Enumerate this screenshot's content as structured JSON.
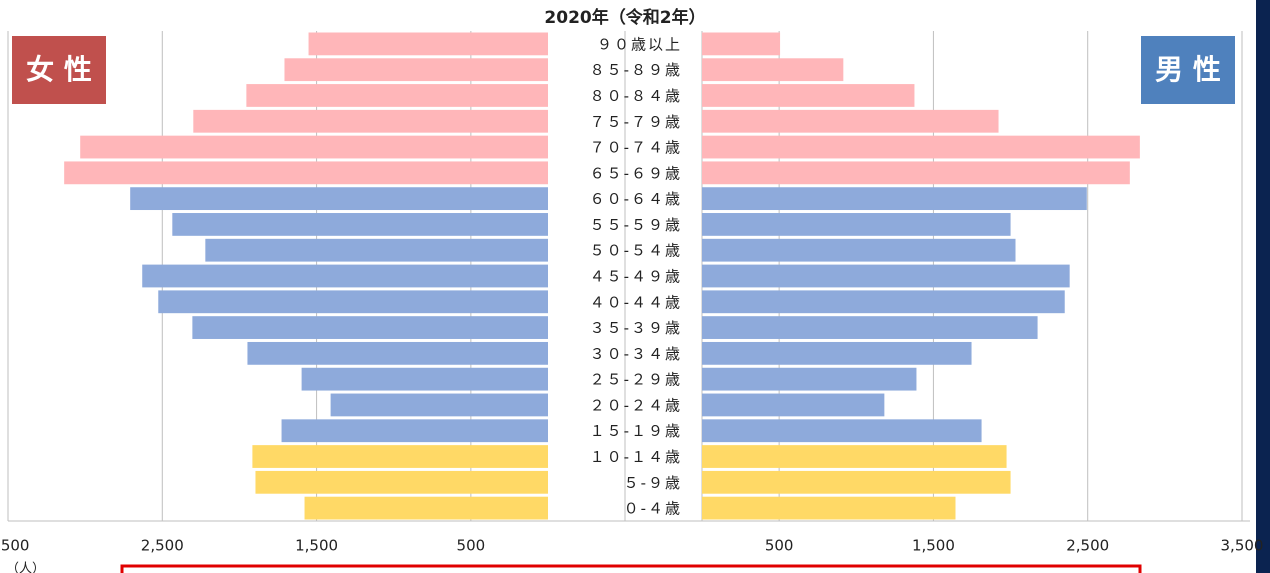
{
  "chart_data": {
    "type": "pyramid",
    "title": "2020年（令和2年）",
    "x_label": "（人）",
    "categories": [
      "９０歳以上",
      "８５-８９歳",
      "８０-８４歳",
      "７５-７９歳",
      "７０-７４歳",
      "６５-６９歳",
      "６０-６４歳",
      "５５-５９歳",
      "５０-５４歳",
      "４５-４９歳",
      "４０-４４歳",
      "３５-３９歳",
      "３０-３４歳",
      "２５-２９歳",
      "２０-２４歳",
      "１５-１９歳",
      "１０-１４歳",
      "５-９歳",
      "０-４歳"
    ],
    "category_colors": [
      "#ffb6b9",
      "#ffb6b9",
      "#ffb6b9",
      "#ffb6b9",
      "#ffb6b9",
      "#ffb6b9",
      "#8eaadb",
      "#8eaadb",
      "#8eaadb",
      "#8eaadb",
      "#8eaadb",
      "#8eaadb",
      "#8eaadb",
      "#8eaadb",
      "#8eaadb",
      "#8eaadb",
      "#ffd966",
      "#ffd966",
      "#ffd966"
    ],
    "series": [
      {
        "name": "女 性",
        "color": "#c0504d",
        "side": "left",
        "values": [
          1552,
          1708,
          1955,
          2299,
          3032,
          3136,
          2708,
          2435,
          2221,
          2630,
          2526,
          2305,
          1948,
          1597,
          1409,
          1727,
          1916,
          1896,
          1578
        ]
      },
      {
        "name": "男 性",
        "color": "#4f81bd",
        "side": "right",
        "values": [
          506,
          916,
          1377,
          1922,
          2838,
          2773,
          2494,
          2000,
          2032,
          2383,
          2351,
          2175,
          1747,
          1390,
          1182,
          1812,
          1974,
          2000,
          1643
        ]
      }
    ],
    "xlim": [
      0,
      3500
    ],
    "xticks": [
      500,
      {
        "value": 1500,
        "label": "1,500"
      },
      {
        "value": 2500,
        "label": "2,500"
      },
      {
        "value": 3500,
        "label": "3,500"
      }
    ],
    "grid": true
  }
}
